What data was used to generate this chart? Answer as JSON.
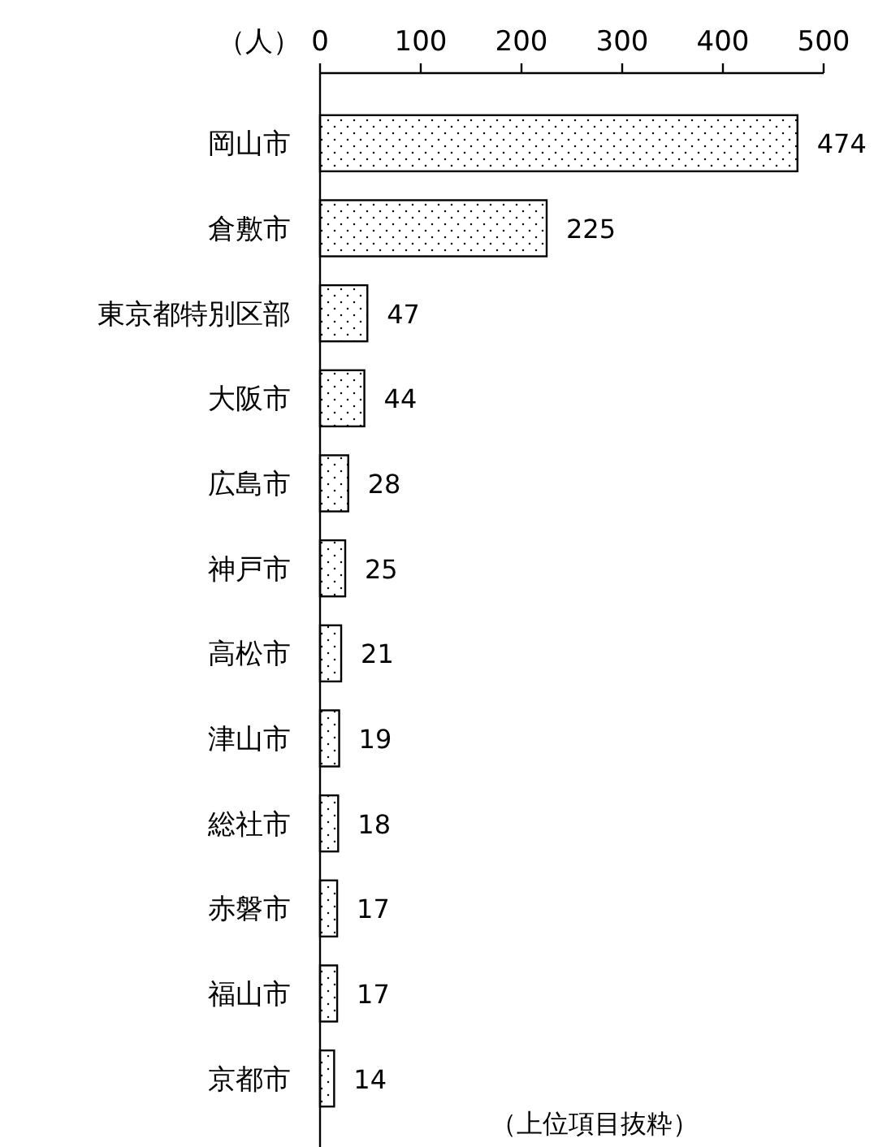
{
  "chart_data": {
    "type": "bar",
    "orientation": "horizontal",
    "xlabel": "（人）",
    "categories": [
      "岡山市",
      "倉敷市",
      "東京都特別区部",
      "大阪市",
      "広島市",
      "神戸市",
      "高松市",
      "津山市",
      "総社市",
      "赤磐市",
      "福山市",
      "京都市"
    ],
    "values": [
      474,
      225,
      47,
      44,
      28,
      25,
      21,
      19,
      18,
      17,
      17,
      14
    ],
    "color": "#000000",
    "data_labels": true,
    "xlim": [
      0,
      500
    ],
    "xticks": [
      0,
      100,
      200,
      300,
      400,
      500
    ],
    "annotations": [
      "（上位項目抜粋）"
    ]
  }
}
